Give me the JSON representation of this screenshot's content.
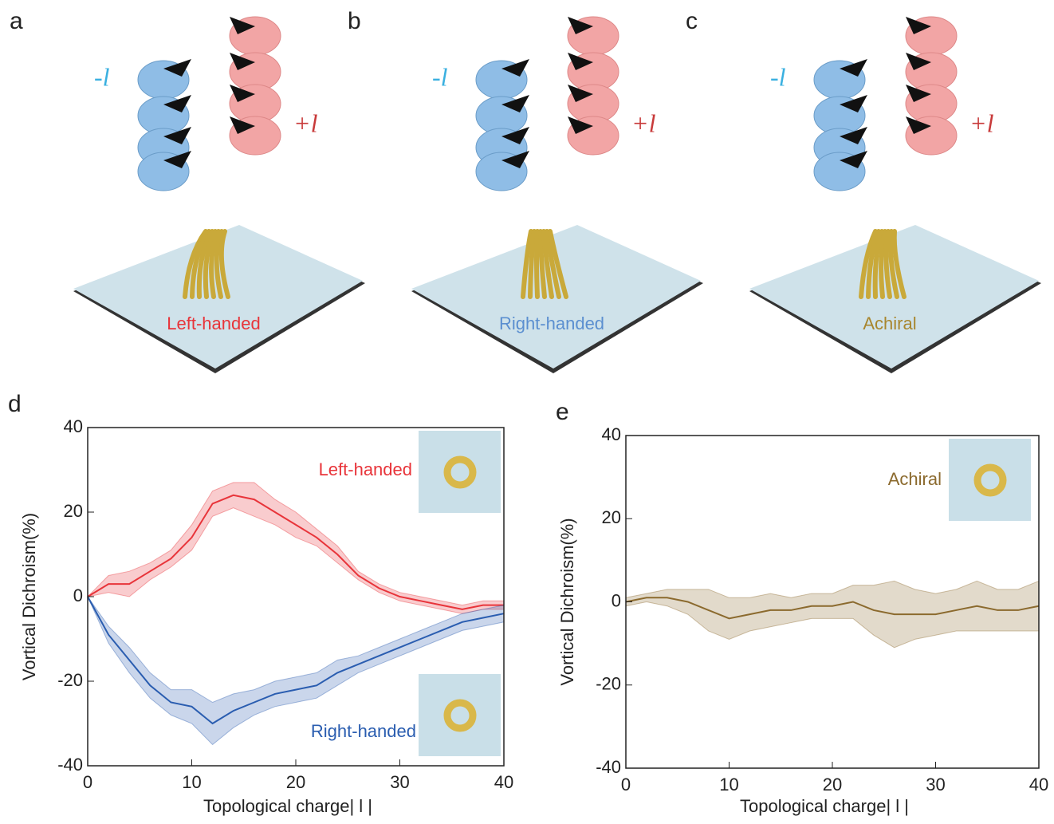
{
  "panels": [
    {
      "label": "a",
      "minus": "-l",
      "plus": "+l",
      "sample": "Left-handed",
      "sample_color": "#e8343a"
    },
    {
      "label": "b",
      "minus": "-l",
      "plus": "+l",
      "sample": "Right-handed",
      "sample_color": "#5b8fd0"
    },
    {
      "label": "c",
      "minus": "-l",
      "plus": "+l",
      "sample": "Achiral",
      "sample_color": "#a8862e"
    }
  ],
  "chart_data": [
    {
      "type": "line",
      "label": "d",
      "xlabel": "Topological charge| l |",
      "ylabel": "Vortical Dichroism(%)",
      "xlim": [
        0,
        40
      ],
      "ylim": [
        -40,
        40
      ],
      "xticks": [
        0,
        10,
        20,
        30,
        40
      ],
      "yticks": [
        -40,
        -20,
        0,
        20,
        40
      ],
      "x": [
        0,
        2,
        4,
        6,
        8,
        10,
        12,
        14,
        16,
        18,
        20,
        22,
        24,
        26,
        28,
        30,
        32,
        34,
        36,
        38,
        40
      ],
      "series": [
        {
          "name": "Left-handed",
          "color": "#e8343a",
          "values": [
            0,
            3,
            3,
            6,
            9,
            14,
            22,
            24,
            23,
            20,
            17,
            14,
            10,
            5,
            2,
            0,
            -1,
            -2,
            -3,
            -2,
            -2
          ],
          "error": [
            0,
            2,
            3,
            2,
            2,
            3,
            3,
            3,
            4,
            3,
            3,
            2,
            2,
            1,
            1,
            1,
            1,
            1,
            1,
            1,
            1
          ]
        },
        {
          "name": "Right-handed",
          "color": "#2a5db0",
          "values": [
            0,
            -9,
            -15,
            -21,
            -25,
            -26,
            -30,
            -27,
            -25,
            -23,
            -22,
            -21,
            -18,
            -16,
            -14,
            -12,
            -10,
            -8,
            -6,
            -5,
            -4
          ],
          "error": [
            0,
            2,
            3,
            3,
            3,
            4,
            5,
            4,
            3,
            3,
            3,
            3,
            3,
            2,
            2,
            2,
            2,
            2,
            2,
            2,
            2
          ]
        }
      ]
    },
    {
      "type": "line",
      "label": "e",
      "xlabel": "Topological charge| l |",
      "ylabel": "Vortical Dichroism(%)",
      "xlim": [
        0,
        40
      ],
      "ylim": [
        -40,
        40
      ],
      "xticks": [
        0,
        10,
        20,
        30,
        40
      ],
      "yticks": [
        -40,
        -20,
        0,
        20,
        40
      ],
      "x": [
        0,
        2,
        4,
        6,
        8,
        10,
        12,
        14,
        16,
        18,
        20,
        22,
        24,
        26,
        28,
        30,
        32,
        34,
        36,
        38,
        40
      ],
      "series": [
        {
          "name": "Achiral",
          "color": "#8b6a2e",
          "values": [
            0,
            1,
            1,
            0,
            -2,
            -4,
            -3,
            -2,
            -2,
            -1,
            -1,
            0,
            -2,
            -3,
            -3,
            -3,
            -2,
            -1,
            -2,
            -2,
            -1
          ],
          "error": [
            1,
            1,
            2,
            3,
            5,
            5,
            4,
            4,
            3,
            3,
            3,
            4,
            6,
            8,
            6,
            5,
            5,
            6,
            5,
            5,
            6
          ]
        }
      ]
    }
  ]
}
